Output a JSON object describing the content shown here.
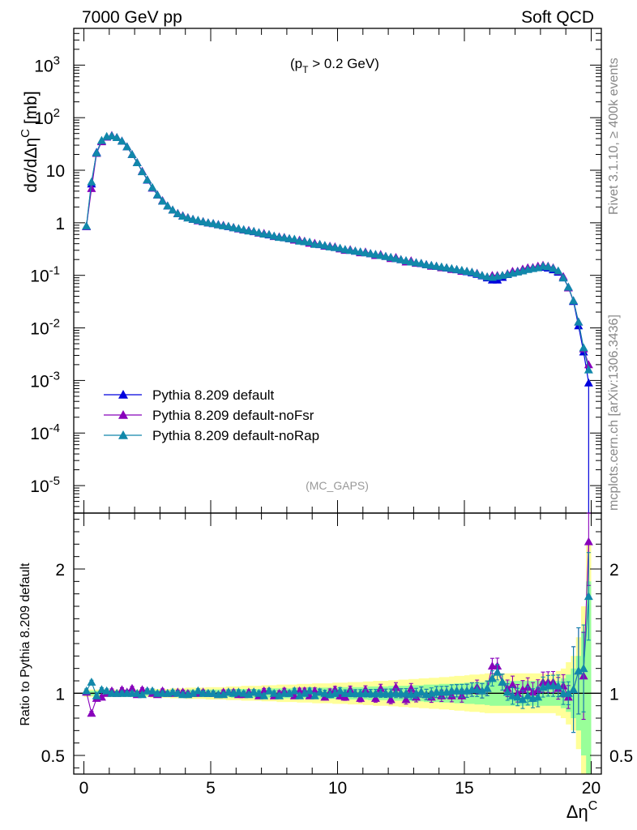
{
  "header": {
    "left": "7000 GeV pp",
    "right": "Soft QCD"
  },
  "side_labels": {
    "rivet": "Rivet 3.1.10, ≥ 400k events",
    "mcplots": "mcplots.cern.ch [arXiv:1306.3436]"
  },
  "colors": {
    "default": "#0000dd",
    "noFsr": "#8800bb",
    "noRap": "#1188aa",
    "band_inner": "#99ff99",
    "band_outer": "#ffff99"
  },
  "chart_data": [
    {
      "type": "line",
      "scale": "log",
      "annotation": "(p_T > 0.2 GeV)",
      "watermark": "(MC_GAPS)",
      "ylabel": "dσ/dΔη^C [mb]",
      "ylim": [
        3e-06,
        5000
      ],
      "xlim": [
        -0.4,
        20.4
      ],
      "yticks": [
        "10^-5",
        "10^-4",
        "10^-3",
        "10^-2",
        "10^-1",
        "1",
        "10",
        "10^2",
        "10^3"
      ],
      "x": [
        0.1,
        0.3,
        0.5,
        0.7,
        0.9,
        1.1,
        1.3,
        1.5,
        1.7,
        1.9,
        2.1,
        2.3,
        2.5,
        2.7,
        2.9,
        3.1,
        3.3,
        3.5,
        3.7,
        3.9,
        4.1,
        4.3,
        4.5,
        4.7,
        4.9,
        5.1,
        5.3,
        5.5,
        5.7,
        5.9,
        6.1,
        6.3,
        6.5,
        6.7,
        6.9,
        7.1,
        7.3,
        7.5,
        7.7,
        7.9,
        8.1,
        8.3,
        8.5,
        8.7,
        8.9,
        9.1,
        9.3,
        9.5,
        9.7,
        9.9,
        10.1,
        10.3,
        10.5,
        10.7,
        10.9,
        11.1,
        11.3,
        11.5,
        11.7,
        11.9,
        12.1,
        12.3,
        12.5,
        12.7,
        12.9,
        13.1,
        13.3,
        13.5,
        13.7,
        13.9,
        14.1,
        14.3,
        14.5,
        14.7,
        14.9,
        15.1,
        15.3,
        15.5,
        15.7,
        15.9,
        16.1,
        16.3,
        16.5,
        16.7,
        16.9,
        17.1,
        17.3,
        17.5,
        17.7,
        17.9,
        18.1,
        18.3,
        18.5,
        18.7,
        18.9,
        19.1,
        19.3,
        19.5,
        19.7,
        19.9
      ],
      "series": [
        {
          "name": "Pythia 8.209 default",
          "color_key": "default",
          "values": [
            0.85,
            5.5,
            22,
            36,
            43,
            45,
            42,
            36,
            28,
            20,
            14,
            9.5,
            6.5,
            4.6,
            3.4,
            2.6,
            2.1,
            1.75,
            1.5,
            1.35,
            1.25,
            1.17,
            1.1,
            1.05,
            1.0,
            0.97,
            0.93,
            0.89,
            0.85,
            0.81,
            0.77,
            0.74,
            0.71,
            0.68,
            0.65,
            0.62,
            0.59,
            0.56,
            0.54,
            0.52,
            0.5,
            0.48,
            0.46,
            0.44,
            0.42,
            0.4,
            0.385,
            0.37,
            0.355,
            0.34,
            0.325,
            0.31,
            0.3,
            0.29,
            0.28,
            0.27,
            0.26,
            0.25,
            0.24,
            0.23,
            0.22,
            0.21,
            0.2,
            0.19,
            0.182,
            0.175,
            0.168,
            0.161,
            0.155,
            0.149,
            0.143,
            0.138,
            0.133,
            0.128,
            0.123,
            0.118,
            0.112,
            0.105,
            0.098,
            0.09,
            0.082,
            0.082,
            0.092,
            0.104,
            0.112,
            0.12,
            0.128,
            0.133,
            0.14,
            0.145,
            0.143,
            0.138,
            0.128,
            0.115,
            0.09,
            0.06,
            0.032,
            0.011,
            0.0035,
            0.0009
          ]
        },
        {
          "name": "Pythia 8.209 default-noFsr",
          "color_key": "noFsr",
          "values": [
            0.86,
            4.5,
            21,
            35,
            43,
            46,
            42,
            36,
            28,
            20,
            14,
            9.6,
            6.6,
            4.6,
            3.4,
            2.65,
            2.1,
            1.75,
            1.52,
            1.37,
            1.26,
            1.17,
            1.1,
            1.06,
            1.0,
            0.97,
            0.92,
            0.9,
            0.86,
            0.82,
            0.77,
            0.73,
            0.72,
            0.69,
            0.64,
            0.63,
            0.6,
            0.55,
            0.54,
            0.53,
            0.5,
            0.47,
            0.47,
            0.45,
            0.41,
            0.41,
            0.39,
            0.36,
            0.36,
            0.35,
            0.32,
            0.3,
            0.31,
            0.29,
            0.27,
            0.28,
            0.26,
            0.24,
            0.25,
            0.23,
            0.21,
            0.22,
            0.2,
            0.18,
            0.19,
            0.17,
            0.17,
            0.16,
            0.15,
            0.15,
            0.14,
            0.14,
            0.13,
            0.13,
            0.12,
            0.12,
            0.115,
            0.11,
            0.1,
            0.094,
            0.1,
            0.1,
            0.1,
            0.108,
            0.12,
            0.12,
            0.132,
            0.14,
            0.141,
            0.15,
            0.156,
            0.15,
            0.14,
            0.12,
            0.095,
            0.058,
            0.033,
            0.013,
            0.004,
            0.002
          ]
        },
        {
          "name": "Pythia 8.209 default-noRap",
          "color_key": "noRap",
          "values": [
            0.87,
            6.0,
            21.5,
            37,
            44,
            45,
            42,
            36,
            28,
            20,
            14,
            9.4,
            6.6,
            4.7,
            3.4,
            2.6,
            2.1,
            1.76,
            1.5,
            1.34,
            1.24,
            1.17,
            1.12,
            1.05,
            1.0,
            0.97,
            0.92,
            0.88,
            0.86,
            0.81,
            0.78,
            0.74,
            0.7,
            0.69,
            0.65,
            0.61,
            0.6,
            0.56,
            0.53,
            0.52,
            0.5,
            0.49,
            0.45,
            0.44,
            0.43,
            0.39,
            0.39,
            0.37,
            0.35,
            0.34,
            0.33,
            0.31,
            0.3,
            0.29,
            0.28,
            0.27,
            0.26,
            0.25,
            0.24,
            0.23,
            0.22,
            0.21,
            0.2,
            0.19,
            0.18,
            0.175,
            0.17,
            0.16,
            0.155,
            0.15,
            0.145,
            0.14,
            0.135,
            0.13,
            0.125,
            0.12,
            0.115,
            0.108,
            0.1,
            0.094,
            0.092,
            0.096,
            0.1,
            0.105,
            0.11,
            0.116,
            0.122,
            0.13,
            0.135,
            0.14,
            0.15,
            0.146,
            0.136,
            0.122,
            0.09,
            0.06,
            0.033,
            0.013,
            0.0042,
            0.0016
          ]
        }
      ],
      "legend": [
        "Pythia 8.209 default",
        "Pythia 8.209 default-noFsr",
        "Pythia 8.209 default-noRap"
      ],
      "legend_position": "lower-left"
    },
    {
      "type": "line",
      "ylabel": "Ratio to Pythia 8.209 default",
      "xlabel": "Δη^C",
      "ylim": [
        0.35,
        2.45
      ],
      "xlim": [
        -0.4,
        20.4
      ],
      "yticks": [
        "0.5",
        "1",
        "2"
      ],
      "xticks": [
        "0",
        "5",
        "10",
        "15",
        "20"
      ],
      "band_inner_halfwidth": [
        0.02,
        0.02,
        0.02,
        0.02,
        0.02,
        0.02,
        0.02,
        0.02,
        0.02,
        0.02,
        0.02,
        0.02,
        0.02,
        0.025,
        0.025,
        0.025,
        0.025,
        0.025,
        0.025,
        0.025,
        0.03,
        0.03,
        0.03,
        0.03,
        0.03,
        0.03,
        0.03,
        0.03,
        0.03,
        0.035,
        0.035,
        0.035,
        0.035,
        0.035,
        0.035,
        0.035,
        0.035,
        0.04,
        0.04,
        0.04,
        0.04,
        0.04,
        0.04,
        0.04,
        0.045,
        0.045,
        0.045,
        0.045,
        0.045,
        0.045,
        0.05,
        0.05,
        0.05,
        0.05,
        0.05,
        0.05,
        0.055,
        0.055,
        0.055,
        0.055,
        0.06,
        0.06,
        0.06,
        0.06,
        0.065,
        0.065,
        0.065,
        0.07,
        0.07,
        0.07,
        0.075,
        0.075,
        0.075,
        0.08,
        0.08,
        0.085,
        0.085,
        0.09,
        0.09,
        0.095,
        0.1,
        0.1,
        0.1,
        0.1,
        0.1,
        0.1,
        0.1,
        0.1,
        0.1,
        0.1,
        0.1,
        0.1,
        0.1,
        0.1,
        0.12,
        0.15,
        0.2,
        0.3,
        0.5,
        0.9
      ],
      "band_outer_halfwidth": [
        0.03,
        0.03,
        0.03,
        0.03,
        0.03,
        0.03,
        0.03,
        0.03,
        0.03,
        0.03,
        0.03,
        0.03,
        0.03,
        0.035,
        0.035,
        0.035,
        0.035,
        0.04,
        0.04,
        0.04,
        0.045,
        0.045,
        0.045,
        0.045,
        0.05,
        0.05,
        0.05,
        0.05,
        0.055,
        0.055,
        0.055,
        0.06,
        0.06,
        0.06,
        0.06,
        0.065,
        0.065,
        0.065,
        0.07,
        0.07,
        0.07,
        0.07,
        0.075,
        0.075,
        0.075,
        0.08,
        0.08,
        0.08,
        0.08,
        0.085,
        0.085,
        0.085,
        0.09,
        0.09,
        0.09,
        0.095,
        0.095,
        0.1,
        0.1,
        0.1,
        0.105,
        0.105,
        0.11,
        0.11,
        0.115,
        0.115,
        0.12,
        0.12,
        0.125,
        0.125,
        0.13,
        0.13,
        0.135,
        0.14,
        0.14,
        0.145,
        0.15,
        0.15,
        0.155,
        0.16,
        0.16,
        0.16,
        0.16,
        0.16,
        0.16,
        0.16,
        0.16,
        0.16,
        0.16,
        0.16,
        0.16,
        0.16,
        0.16,
        0.18,
        0.2,
        0.25,
        0.3,
        0.45,
        0.7,
        1.2
      ],
      "series": [
        {
          "name": "Pythia 8.209 default-noFsr",
          "color_key": "noFsr",
          "values": [
            1.01,
            0.84,
            0.96,
            0.97,
            1.0,
            1.02,
            1.0,
            1.03,
            1.01,
            1.04,
            0.99,
            1.03,
            1.02,
            1.0,
            0.99,
            1.02,
            1.0,
            1.0,
            1.01,
            1.01,
            1.0,
            1.0,
            1.0,
            1.01,
            1.0,
            1.0,
            0.99,
            1.01,
            1.01,
            1.01,
            0.99,
            0.99,
            1.01,
            1.01,
            0.98,
            1.02,
            1.02,
            0.98,
            1.0,
            1.02,
            1.0,
            0.98,
            1.02,
            1.02,
            0.98,
            1.02,
            1.01,
            0.97,
            1.01,
            1.03,
            0.98,
            0.97,
            1.03,
            1.0,
            0.96,
            1.03,
            1.0,
            0.96,
            1.04,
            1.0,
            0.95,
            1.05,
            1.0,
            0.95,
            1.04,
            0.97,
            1.01,
            0.99,
            0.97,
            1.01,
            0.98,
            1.01,
            0.98,
            1.02,
            0.98,
            1.02,
            1.03,
            1.05,
            1.02,
            1.04,
            1.22,
            1.22,
            1.09,
            1.04,
            1.07,
            1.0,
            1.03,
            1.05,
            1.01,
            1.03,
            1.09,
            1.09,
            1.09,
            1.04,
            1.06,
            0.97,
            1.03,
            1.18,
            1.14,
            2.22
          ]
        },
        {
          "name": "Pythia 8.209 default-noRap",
          "color_key": "noRap",
          "values": [
            1.02,
            1.09,
            0.98,
            1.03,
            1.02,
            1.0,
            1.0,
            1.0,
            1.0,
            1.0,
            1.0,
            0.99,
            1.02,
            1.02,
            1.0,
            1.0,
            1.0,
            1.01,
            1.0,
            0.99,
            0.99,
            1.0,
            1.02,
            1.0,
            1.0,
            1.0,
            0.99,
            0.99,
            1.01,
            1.0,
            1.01,
            1.0,
            0.99,
            1.01,
            1.0,
            0.98,
            1.02,
            1.0,
            0.98,
            1.0,
            1.0,
            1.02,
            0.98,
            1.0,
            1.02,
            0.98,
            1.01,
            1.0,
            0.99,
            1.0,
            1.02,
            1.0,
            1.0,
            1.0,
            1.0,
            1.0,
            1.0,
            1.0,
            1.0,
            1.0,
            1.0,
            1.0,
            1.0,
            1.0,
            0.99,
            1.0,
            1.01,
            0.99,
            1.0,
            1.01,
            1.01,
            1.01,
            1.02,
            1.02,
            1.02,
            1.02,
            1.03,
            1.03,
            1.02,
            1.04,
            1.12,
            1.17,
            1.09,
            1.01,
            0.98,
            0.97,
            0.95,
            0.98,
            0.96,
            0.97,
            1.05,
            1.06,
            1.06,
            1.06,
            1.0,
            1.0,
            1.03,
            1.18,
            1.2,
            1.78
          ]
        }
      ],
      "reference_line": 1
    }
  ]
}
